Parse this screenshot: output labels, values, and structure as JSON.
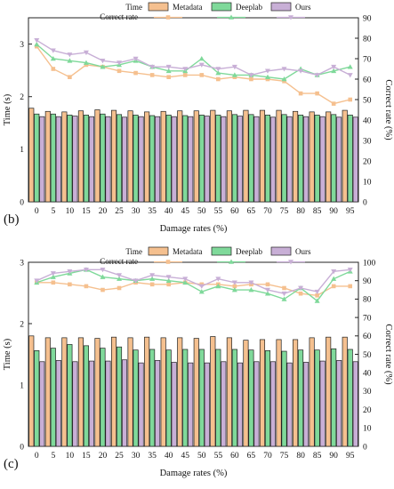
{
  "chart_data": [
    {
      "panel_label": "(b)",
      "type": "bar+line",
      "xlabel": "Damage rates (%)",
      "ylabel_left": "Time (s)",
      "ylabel_right": "Correct rate (%)",
      "categories": [
        "0",
        "5",
        "10",
        "15",
        "20",
        "25",
        "30",
        "35",
        "40",
        "45",
        "50",
        "55",
        "60",
        "65",
        "70",
        "75",
        "80",
        "85",
        "90",
        "95"
      ],
      "ylim_left": [
        0,
        3.5
      ],
      "yticks_left": [
        "0",
        "1",
        "2",
        "3"
      ],
      "ylim_right": [
        0,
        90
      ],
      "yticks_right": [
        "0",
        "10",
        "20",
        "30",
        "40",
        "50",
        "60",
        "70",
        "80",
        "90"
      ],
      "legend": {
        "time_label": "Time",
        "rate_label": "Correct rate",
        "placement": "top"
      },
      "series": [
        {
          "name": "Metadata",
          "color": "#f5c08f",
          "time": [
            1.78,
            1.72,
            1.71,
            1.73,
            1.75,
            1.74,
            1.73,
            1.71,
            1.72,
            1.73,
            1.73,
            1.74,
            1.73,
            1.74,
            1.74,
            1.74,
            1.72,
            1.71,
            1.71,
            1.74
          ],
          "correct_rate": [
            76,
            65,
            61,
            67,
            66,
            64,
            63,
            62,
            61,
            62,
            62,
            60,
            61,
            60,
            60,
            59,
            53,
            53,
            48,
            50
          ]
        },
        {
          "name": "Deeplab",
          "color": "#7fd99a",
          "time": [
            1.67,
            1.67,
            1.65,
            1.65,
            1.67,
            1.66,
            1.65,
            1.64,
            1.65,
            1.64,
            1.65,
            1.65,
            1.66,
            1.66,
            1.65,
            1.66,
            1.65,
            1.65,
            1.66,
            1.65
          ],
          "correct_rate": [
            77,
            70,
            69,
            68,
            66,
            67,
            69,
            66,
            64,
            64,
            70,
            63,
            62,
            62,
            61,
            60,
            65,
            62,
            64,
            66
          ]
        },
        {
          "name": "Ours",
          "color": "#c8afd6",
          "time": [
            1.62,
            1.62,
            1.63,
            1.62,
            1.62,
            1.61,
            1.62,
            1.62,
            1.62,
            1.62,
            1.63,
            1.62,
            1.63,
            1.62,
            1.61,
            1.62,
            1.62,
            1.62,
            1.61,
            1.61
          ],
          "correct_rate": [
            79,
            74,
            72,
            73,
            69,
            68,
            70,
            66,
            66,
            65,
            67,
            65,
            66,
            62,
            64,
            65,
            64,
            62,
            66,
            62
          ]
        }
      ]
    },
    {
      "panel_label": "(c)",
      "type": "bar+line",
      "xlabel": "Damage rates (%)",
      "ylabel_left": "Time (s)",
      "ylabel_right": "Correct rate (%)",
      "categories": [
        "0",
        "5",
        "10",
        "15",
        "20",
        "25",
        "30",
        "35",
        "40",
        "45",
        "50",
        "55",
        "60",
        "65",
        "70",
        "75",
        "80",
        "85",
        "90",
        "95"
      ],
      "ylim_left": [
        0,
        3.0
      ],
      "yticks_left": [
        "0",
        "1",
        "2",
        "3"
      ],
      "ylim_right": [
        0,
        100
      ],
      "yticks_right": [
        "0",
        "10",
        "20",
        "30",
        "40",
        "50",
        "60",
        "70",
        "80",
        "90",
        "100"
      ],
      "legend": {
        "time_label": "Time",
        "rate_label": "Correct rate",
        "placement": "top"
      },
      "series": [
        {
          "name": "Metadata",
          "color": "#f5c08f",
          "time": [
            1.8,
            1.77,
            1.77,
            1.77,
            1.76,
            1.78,
            1.77,
            1.78,
            1.77,
            1.77,
            1.76,
            1.79,
            1.77,
            1.73,
            1.74,
            1.74,
            1.74,
            1.77,
            1.78,
            1.78
          ],
          "correct_rate": [
            89,
            89,
            88,
            87,
            85,
            86,
            89,
            88,
            88,
            89,
            88,
            88,
            87,
            88,
            88,
            86,
            83,
            82,
            87,
            87
          ]
        },
        {
          "name": "Deeplab",
          "color": "#7fd99a",
          "time": [
            1.56,
            1.6,
            1.66,
            1.64,
            1.6,
            1.62,
            1.57,
            1.58,
            1.57,
            1.58,
            1.58,
            1.58,
            1.58,
            1.57,
            1.56,
            1.55,
            1.57,
            1.57,
            1.59,
            1.58
          ],
          "correct_rate": [
            89,
            92,
            94,
            96,
            92,
            91,
            90,
            91,
            90,
            89,
            84,
            87,
            85,
            85,
            83,
            80,
            86,
            79,
            91,
            95
          ]
        },
        {
          "name": "Ours",
          "color": "#c8afd6",
          "time": [
            1.38,
            1.4,
            1.38,
            1.39,
            1.39,
            1.41,
            1.36,
            1.4,
            1.37,
            1.36,
            1.36,
            1.38,
            1.36,
            1.38,
            1.38,
            1.36,
            1.37,
            1.39,
            1.4,
            1.38
          ],
          "correct_rate": [
            90,
            94,
            95,
            96,
            96,
            93,
            90,
            93,
            92,
            91,
            87,
            91,
            89,
            89,
            85,
            83,
            86,
            84,
            95,
            96
          ]
        }
      ]
    }
  ]
}
